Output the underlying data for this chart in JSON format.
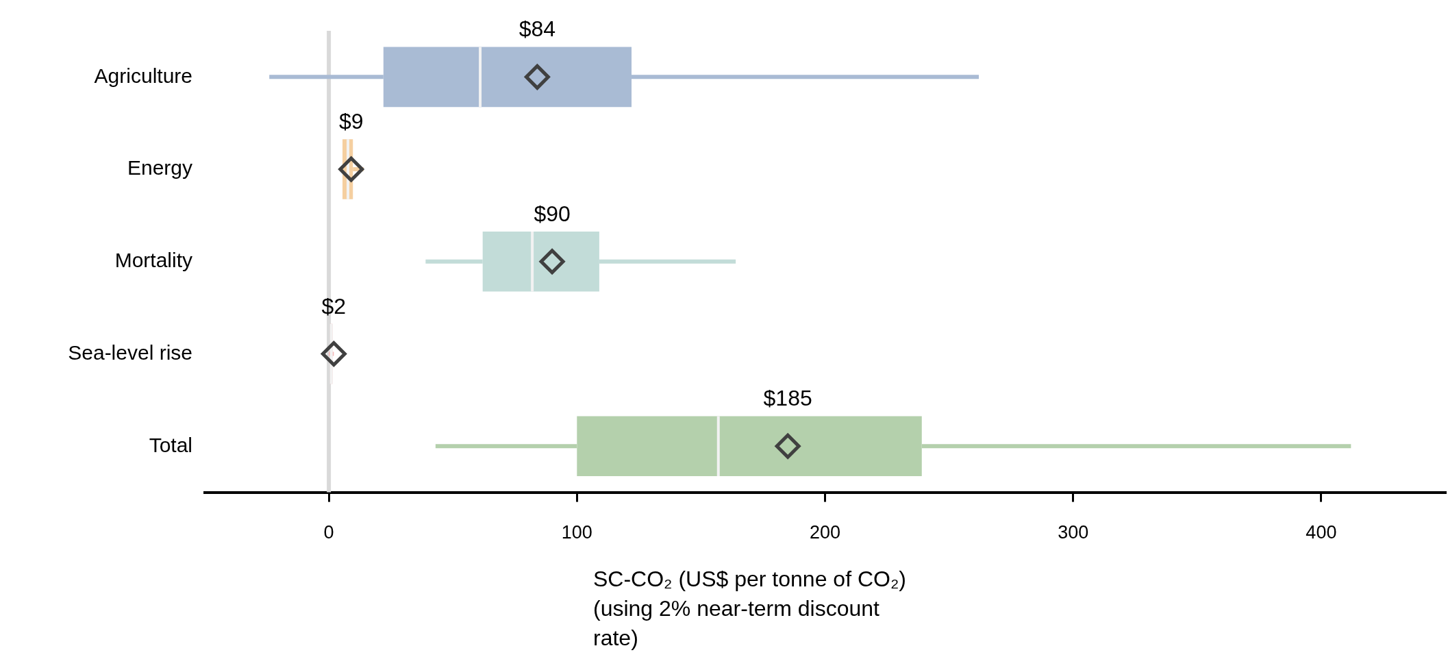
{
  "chart_data": {
    "type": "box",
    "orientation": "horizontal",
    "categories": [
      "Agriculture",
      "Energy",
      "Mortality",
      "Sea-level rise",
      "Total"
    ],
    "boxes": [
      {
        "low": -24,
        "q1": 22,
        "median": 61,
        "q3": 122,
        "high": 262,
        "mean": 84
      },
      {
        "low": 5,
        "q1": 5.5,
        "median": 7.7,
        "q3": 9.7,
        "high": 14,
        "mean": 9
      },
      {
        "low": 39,
        "q1": 62,
        "median": 82,
        "q3": 109,
        "high": 164,
        "mean": 90
      },
      {
        "low": 0,
        "q1": 0.5,
        "median": 1,
        "q3": 1.5,
        "high": 2,
        "mean": 2
      },
      {
        "low": 43,
        "q1": 100,
        "median": 157,
        "q3": 239,
        "high": 412,
        "mean": 185
      }
    ],
    "colors": [
      "#a9bbd4",
      "#f5cfa0",
      "#c2dcd8",
      "#f4b8b8",
      "#b4d0ac"
    ],
    "marker": "diamond",
    "xlim": [
      -50,
      450
    ],
    "xticks": [
      0,
      100,
      200,
      300,
      400
    ],
    "xlabel": "SC-CO₂ (US$ per tonne of CO₂) (using 2% near-term discount rate)",
    "ref_lines": [
      {
        "axis": "x",
        "value": 0,
        "color": "#d9d9d9"
      }
    ],
    "value_labels": [
      "$84",
      "$9",
      "$90",
      "$2",
      "$185"
    ],
    "legend": false,
    "grid": false
  }
}
